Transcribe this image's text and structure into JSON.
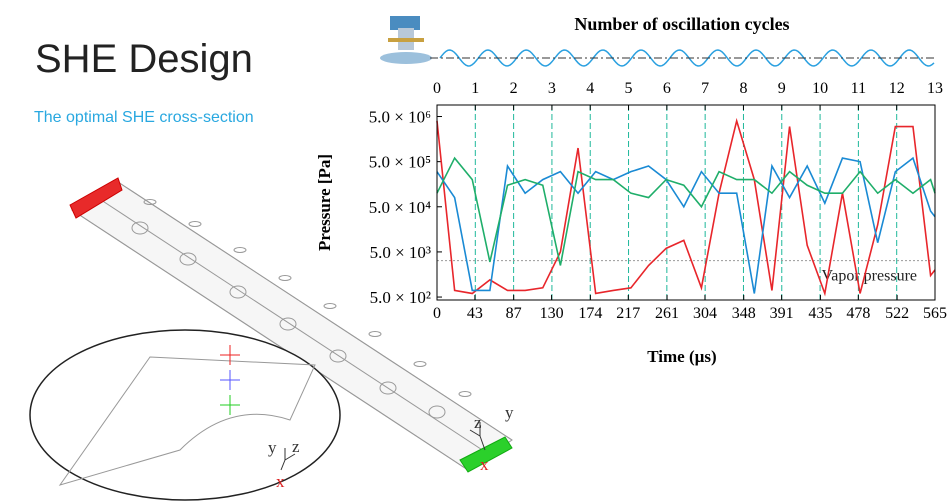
{
  "title": "SHE Design",
  "subtitle": "The optimal SHE cross-section",
  "triads": [
    {
      "labels": [
        "y",
        "z",
        "x"
      ]
    },
    {
      "labels": [
        "z",
        "y",
        "x"
      ]
    }
  ],
  "chart_data": {
    "type": "line",
    "title": "Number of oscillation cycles",
    "x_label": "Time (µs)",
    "y_label": "Pressure [Pa]",
    "x": [
      0,
      20,
      40,
      60,
      80,
      100,
      120,
      140,
      160,
      180,
      200,
      220,
      240,
      260,
      280,
      300,
      320,
      340,
      360,
      380,
      400,
      420,
      440,
      460,
      480,
      500,
      520,
      540,
      560,
      565
    ],
    "xlim": [
      0,
      565
    ],
    "xticks": [
      0,
      43,
      87,
      130,
      174,
      217,
      261,
      304,
      348,
      391,
      435,
      478,
      522,
      565
    ],
    "x2lim": [
      0,
      13
    ],
    "x2ticks": [
      0,
      1,
      2,
      3,
      4,
      5,
      6,
      7,
      8,
      9,
      10,
      11,
      12,
      13
    ],
    "y_scale": "log",
    "ylim": [
      430,
      9000000
    ],
    "yticks": [
      {
        "value": 500,
        "label": "5.0 × 10²"
      },
      {
        "value": 5000,
        "label": "5.0 × 10³"
      },
      {
        "value": 50000,
        "label": "5.0 × 10⁴"
      },
      {
        "value": 500000,
        "label": "5.0 × 10⁵"
      },
      {
        "value": 5000000,
        "label": "5.0 × 10⁶"
      }
    ],
    "grid": true,
    "series": [
      {
        "name": "red",
        "color": "#e8262b",
        "values": [
          4000000,
          700,
          600,
          1200,
          700,
          700,
          800,
          5000,
          1000000,
          600,
          700,
          800,
          2500,
          6000,
          9000,
          800,
          100000,
          4000000,
          200000,
          700,
          3000000,
          7000,
          600,
          100000,
          600,
          20000,
          3000000,
          3000000,
          1500,
          2000
        ]
      },
      {
        "name": "blue",
        "color": "#1a8ad4",
        "values": [
          300000,
          80000,
          700,
          700,
          400000,
          100000,
          200000,
          300000,
          100000,
          300000,
          200000,
          300000,
          400000,
          200000,
          50000,
          300000,
          100000,
          100000,
          600,
          400000,
          80000,
          400000,
          60000,
          600000,
          500000,
          8000,
          300000,
          600000,
          40000,
          30000
        ]
      },
      {
        "name": "green",
        "color": "#1fae6a",
        "values": [
          100000,
          600000,
          200000,
          3000,
          150000,
          200000,
          150000,
          2500,
          300000,
          200000,
          200000,
          100000,
          80000,
          200000,
          150000,
          50000,
          300000,
          200000,
          200000,
          100000,
          300000,
          150000,
          100000,
          100000,
          300000,
          100000,
          200000,
          100000,
          200000,
          100000
        ]
      }
    ],
    "annotations": [
      {
        "text": "Vapor pressure",
        "value": 3200
      }
    ]
  }
}
